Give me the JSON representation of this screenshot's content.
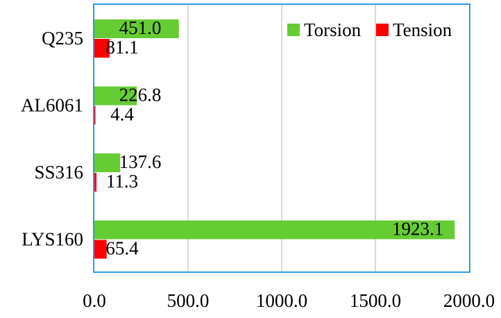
{
  "chart_data": {
    "type": "bar",
    "orientation": "horizontal",
    "categories": [
      "Q235",
      "AL6061",
      "SS316",
      "LYS160"
    ],
    "series": [
      {
        "name": "Torsion",
        "values": [
          451.0,
          226.8,
          137.6,
          1923.1
        ],
        "labels": [
          "451.0",
          "226.8",
          "137.6",
          "1923.1"
        ]
      },
      {
        "name": "Tension",
        "values": [
          81.1,
          4.4,
          11.3,
          65.4
        ],
        "labels": [
          "81.1",
          "4.4",
          "11.3",
          "65.4"
        ]
      }
    ],
    "xlim": [
      0,
      2000
    ],
    "xticks": [
      0,
      500,
      1000,
      1500,
      2000
    ],
    "xtick_labels": [
      "0.0",
      "500.0",
      "1000.0",
      "1500.0",
      "2000.0"
    ],
    "grid": true,
    "legend_position": "top-right",
    "title": "",
    "xlabel": "",
    "ylabel": ""
  },
  "colors": {
    "Torsion": "#66cc33",
    "Tension": "#ff0000",
    "frame": "#2e9be0",
    "grid": "#d9d9d9"
  }
}
